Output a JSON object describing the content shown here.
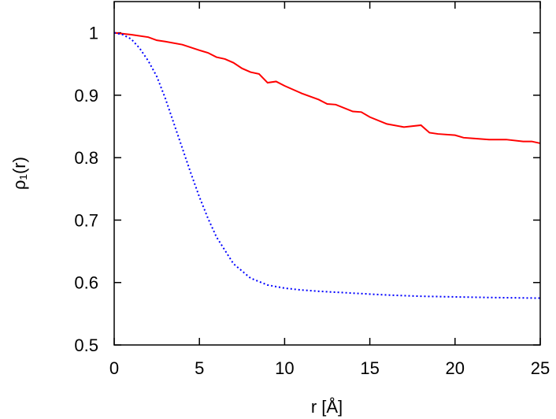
{
  "chart_data": {
    "type": "line",
    "xlabel": "r [Å]",
    "ylabel": "ρ₁(r)",
    "xlim": [
      0,
      25
    ],
    "xticks": [
      0,
      5,
      10,
      15,
      20,
      25
    ],
    "ylim": [
      0.5,
      1.05
    ],
    "yticks": [
      0.5,
      0.6,
      0.7,
      0.8,
      0.9,
      1
    ],
    "grid": false,
    "series": [
      {
        "color": "#ff0000",
        "dash": "solid",
        "x": [
          0,
          1,
          2,
          2.5,
          3,
          4,
          5,
          5.5,
          6,
          6.5,
          7,
          7.5,
          8,
          8.5,
          9,
          9.5,
          10,
          11,
          12,
          12.5,
          13,
          14,
          14.5,
          15,
          16,
          17,
          18,
          18.5,
          19,
          20,
          20.5,
          21,
          22,
          23,
          24,
          24.5,
          25
        ],
        "values": [
          1.0,
          0.997,
          0.993,
          0.988,
          0.986,
          0.981,
          0.972,
          0.968,
          0.961,
          0.958,
          0.952,
          0.943,
          0.937,
          0.934,
          0.92,
          0.922,
          0.915,
          0.903,
          0.893,
          0.886,
          0.885,
          0.874,
          0.873,
          0.865,
          0.854,
          0.849,
          0.852,
          0.84,
          0.838,
          0.836,
          0.832,
          0.831,
          0.829,
          0.829,
          0.826,
          0.826,
          0.823
        ]
      },
      {
        "color": "#0000ff",
        "dash": "dotted",
        "x": [
          0,
          0.5,
          1,
          1.5,
          2,
          2.5,
          3,
          3.5,
          4,
          4.5,
          5,
          5.5,
          6,
          7,
          8,
          9,
          10,
          11,
          12,
          14,
          16,
          18,
          20,
          22,
          25
        ],
        "values": [
          1.0,
          0.997,
          0.99,
          0.975,
          0.955,
          0.93,
          0.895,
          0.855,
          0.815,
          0.775,
          0.737,
          0.703,
          0.673,
          0.63,
          0.607,
          0.596,
          0.591,
          0.588,
          0.586,
          0.583,
          0.58,
          0.578,
          0.577,
          0.576,
          0.575
        ]
      }
    ]
  }
}
